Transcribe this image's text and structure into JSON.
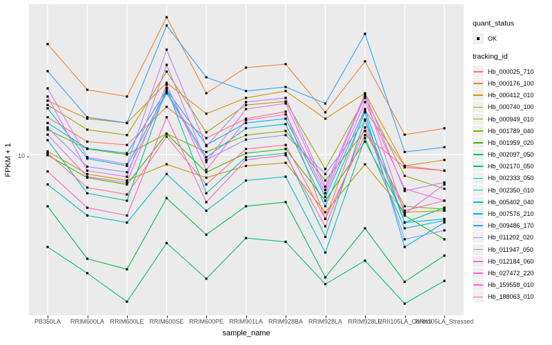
{
  "axes": {
    "x_title": "sample_name",
    "y_title": "FPKM + 1",
    "y_tick_label": "10",
    "y_scale": "log10",
    "tick_color": "#4D4D4D"
  },
  "legend": {
    "quant_status_title": "quant_status",
    "quant_status_ok": "OK",
    "tracking_id_title": "tracking_id",
    "key_background": "#F0F0F0",
    "marker_color": "#000000"
  },
  "chart_data": {
    "type": "line",
    "title": "",
    "xlabel": "sample_name",
    "ylabel": "FPKM + 1",
    "y_scale": "log10",
    "y_ticks": [
      10
    ],
    "ylim": [
      1,
      100
    ],
    "grid": "white-on-gray",
    "panel_bg": "#EBEBEB",
    "grid_color": "#FFFFFF",
    "marker": "black-square",
    "legend_position": "right",
    "categories": [
      "PB350LA",
      "RRIM600LA",
      "RRIM600LE",
      "RRIM600SE",
      "RRIM600PE",
      "RRIM901LA",
      "RRIM928BA",
      "RRIM928LA",
      "RRIM928LE",
      "RRII105LA_Control",
      "RRII105LA_Stressed"
    ],
    "series": [
      {
        "name": "Hb_000025_710",
        "color": "#F8766D",
        "values": [
          17.8,
          12.2,
          11.6,
          20.9,
          12.9,
          17.4,
          19.4,
          3.7,
          19.8,
          8.4,
          7.8
        ]
      },
      {
        "name": "Hb_000176_100",
        "color": "#EB8335",
        "values": [
          55.1,
          27.2,
          24.5,
          83.4,
          25.8,
          38.3,
          40.4,
          19.2,
          42.2,
          13.6,
          15.0
        ]
      },
      {
        "name": "Hb_000412_010",
        "color": "#D89000",
        "values": [
          23.0,
          17.4,
          16.3,
          30.3,
          18.8,
          24.0,
          26.7,
          17.4,
          25.8,
          8.4,
          9.2
        ]
      },
      {
        "name": "Hb_000740_100",
        "color": "#C09B00",
        "values": [
          10.5,
          7.4,
          6.7,
          8.6,
          7.0,
          8.4,
          8.8,
          4.1,
          8.6,
          4.1,
          4.2
        ]
      },
      {
        "name": "Hb_000949_010",
        "color": "#A3A500",
        "values": [
          21.5,
          14.7,
          13.5,
          36.0,
          14.1,
          21.5,
          22.7,
          8.0,
          24.0,
          7.2,
          5.9
        ]
      },
      {
        "name": "Hb_001789_040",
        "color": "#7CAE00",
        "values": [
          14.7,
          10.9,
          10.0,
          13.8,
          10.4,
          13.5,
          14.4,
          6.7,
          14.4,
          4.5,
          4.3
        ]
      },
      {
        "name": "Hb_001959_020",
        "color": "#39B600",
        "values": [
          9.9,
          7.0,
          6.3,
          13.8,
          7.6,
          10.2,
          10.9,
          4.9,
          12.2,
          3.9,
          2.7
        ]
      },
      {
        "name": "Hb_002097_050",
        "color": "#00BB4E",
        "values": [
          4.5,
          2.0,
          1.7,
          5.1,
          2.9,
          4.5,
          4.8,
          1.5,
          3.2,
          1.4,
          2.1
        ]
      },
      {
        "name": "Hb_002170_050",
        "color": "#00BF7D",
        "values": [
          2.4,
          1.6,
          1.03,
          2.55,
          1.47,
          2.75,
          2.6,
          1.35,
          1.94,
          1.0,
          1.42
        ]
      },
      {
        "name": "Hb_002333_050",
        "color": "#00C1A7",
        "values": [
          12.5,
          5.5,
          4.9,
          28.1,
          5.5,
          9.6,
          10.2,
          2.8,
          17.2,
          3.5,
          4.4
        ]
      },
      {
        "name": "Hb_002350_010",
        "color": "#00BFC4",
        "values": [
          6.3,
          3.9,
          3.5,
          7.4,
          4.2,
          6.7,
          7.1,
          2.2,
          12.9,
          3.2,
          3.6
        ]
      },
      {
        "name": "Hb_005402_040",
        "color": "#00BAE0",
        "values": [
          20.4,
          9.4,
          8.4,
          26.4,
          9.6,
          15.0,
          16.0,
          4.5,
          19.2,
          2.4,
          3.5
        ]
      },
      {
        "name": "Hb_007576_210",
        "color": "#00B0F6",
        "values": [
          16.3,
          11.0,
          10.2,
          27.2,
          11.6,
          16.3,
          17.4,
          5.2,
          20.2,
          3.5,
          3.7
        ]
      },
      {
        "name": "Hb_009486_170",
        "color": "#35A2FF",
        "values": [
          36.3,
          17.8,
          16.3,
          73.4,
          33.0,
          26.7,
          28.4,
          22.0,
          64.6,
          10.4,
          11.2
        ]
      },
      {
        "name": "Hb_011202_020",
        "color": "#9590FF",
        "values": [
          15.2,
          8.3,
          7.6,
          25.8,
          9.2,
          12.6,
          13.5,
          7.4,
          16.9,
          2.7,
          3.1
        ]
      },
      {
        "name": "Hb_011947_050",
        "color": "#C77CFF",
        "values": [
          27.8,
          9.6,
          8.6,
          50.6,
          11.4,
          22.5,
          24.0,
          6.1,
          25.6,
          5.7,
          6.5
        ]
      },
      {
        "name": "Hb_012184_060",
        "color": "#E76BF3",
        "values": [
          24.5,
          7.8,
          7.1,
          40.0,
          8.9,
          20.2,
          22.0,
          5.8,
          24.8,
          4.0,
          6.3
        ]
      },
      {
        "name": "Hb_027472_220",
        "color": "#FA62DB",
        "values": [
          13.6,
          7.1,
          6.5,
          29.4,
          7.9,
          17.0,
          18.6,
          5.5,
          22.5,
          5.9,
          4.9
        ]
      },
      {
        "name": "Hb_159558_010",
        "color": "#FF62BC",
        "values": [
          7.7,
          4.4,
          3.9,
          17.8,
          4.8,
          9.2,
          9.9,
          3.3,
          15.2,
          4.2,
          4.9
        ]
      },
      {
        "name": "Hb_188063_010",
        "color": "#FF6A98",
        "values": [
          10.2,
          6.0,
          5.4,
          13.2,
          6.3,
          10.9,
          11.6,
          3.7,
          13.5,
          8.2,
          7.8
        ]
      }
    ]
  }
}
